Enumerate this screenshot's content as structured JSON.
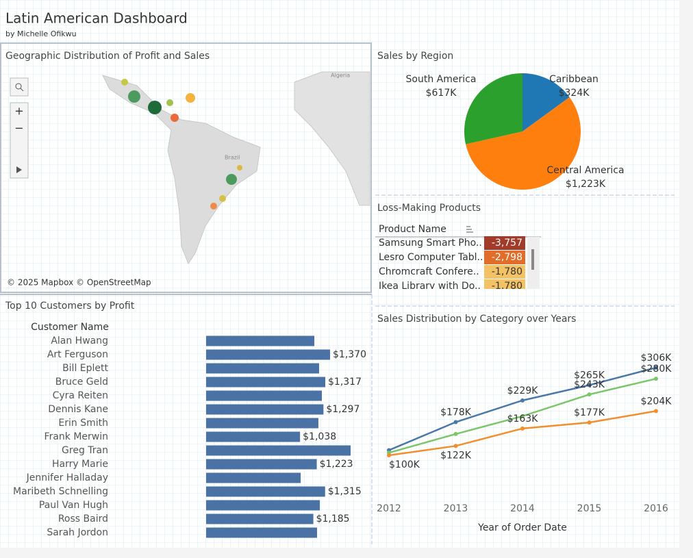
{
  "header": {
    "title": "Latin American Dashboard",
    "subtitle": "by Michelle Ofikwu"
  },
  "map": {
    "title": "Geographic Distribution of Profit and Sales",
    "labels": [
      "Algeria",
      "Brazil"
    ],
    "attribution": "© 2025 Mapbox © OpenStreetMap"
  },
  "chart_data": [
    {
      "type": "pie",
      "title": "Sales by Region",
      "categories": [
        "Caribbean",
        "Central America",
        "South America"
      ],
      "values": [
        324,
        1223,
        617
      ],
      "value_labels": [
        "$324K",
        "$1,223K",
        "$617K"
      ],
      "colors": [
        "#1f77b4",
        "#ff7f0e",
        "#2ca02c"
      ]
    },
    {
      "type": "table",
      "title": "Loss-Making Products",
      "column": "Product Name",
      "categories": [
        "Samsung Smart Pho..",
        "Lesro Computer Tabl..",
        "Chromcraft Confere..",
        "Ikea Library with Do.."
      ],
      "values": [
        -3757,
        -2798,
        -1780,
        -1780
      ],
      "value_labels": [
        "-3,757",
        "-2,798",
        "-1,780",
        "-1,780"
      ],
      "colors": [
        "#a33b2b",
        "#e06d2a",
        "#f2c265",
        "#f2c265"
      ]
    },
    {
      "type": "hbar",
      "title": "Top 10 Customers by Profit",
      "ylabel": "Customer Name",
      "color": "#4a72a5",
      "categories": [
        "Alan Hwang",
        "Art Ferguson",
        "Bill Eplett",
        "Bruce Geld",
        "Cyra Reiten",
        "Dennis Kane",
        "Erin Smith",
        "Frank Merwin",
        "Greg Tran",
        "Harry Marie",
        "Jennifer Halladay",
        "Maribeth Schnelling",
        "Paul Van Hugh",
        "Ross Baird",
        "Sarah Jordon"
      ],
      "values": [
        1196,
        1370,
        1249,
        1317,
        1279,
        1297,
        1241,
        1038,
        1597,
        1223,
        1045,
        1315,
        1257,
        1185,
        1226
      ],
      "value_labels": [
        null,
        "$1,370",
        null,
        "$1,317",
        null,
        "$1,297",
        null,
        "$1,038",
        null,
        "$1,223",
        null,
        "$1,315",
        null,
        "$1,185",
        null
      ]
    },
    {
      "type": "line",
      "title": "Sales Distribution by Category over Years",
      "xlabel": "Year of Order Date",
      "x": [
        2012,
        2013,
        2014,
        2015,
        2016
      ],
      "series": [
        {
          "color": "#4a78a8",
          "values": [
            112,
            178,
            229,
            265,
            306
          ],
          "value_labels": [
            null,
            "$178K",
            "$229K",
            "$265K",
            "$306K"
          ]
        },
        {
          "color": "#7cc66a",
          "values": [
            106,
            150,
            192,
            243,
            280
          ],
          "value_labels": [
            null,
            null,
            null,
            "$243K",
            "$280K"
          ]
        },
        {
          "color": "#f28e2b",
          "values": [
            100,
            122,
            163,
            177,
            204
          ],
          "value_labels": [
            "$100K",
            "$122K",
            "$163K",
            "$177K",
            "$204K"
          ]
        }
      ]
    }
  ]
}
